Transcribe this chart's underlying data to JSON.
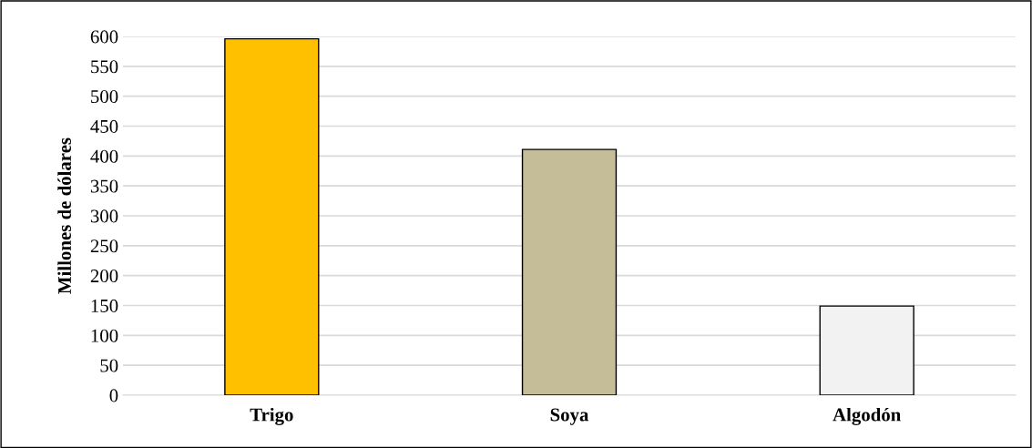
{
  "chart_data": {
    "type": "bar",
    "ylabel": "Millones de dólares",
    "categories": [
      "Trigo",
      "Soya",
      "Algodón"
    ],
    "values": [
      596,
      411,
      149
    ],
    "colors": [
      "#ffc000",
      "#c4bd97",
      "#f2f2f2"
    ],
    "ylim": [
      0,
      600
    ],
    "yticks": [
      0,
      50,
      100,
      150,
      200,
      250,
      300,
      350,
      400,
      450,
      500,
      550,
      600
    ],
    "grid": "y"
  }
}
